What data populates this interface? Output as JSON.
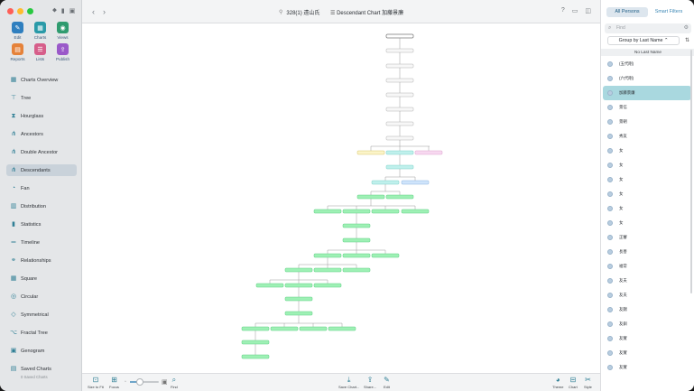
{
  "toolbar": {
    "title_number": "328(1) 遠山氏",
    "separator": "|",
    "chart_title": "Descendant Chart 加藤景廉"
  },
  "sidebar": {
    "tools": [
      {
        "label": "Edit",
        "icon": "pencil-icon",
        "color": "#2f7fbf"
      },
      {
        "label": "Charts",
        "icon": "charts-icon",
        "color": "#2a9aa8"
      },
      {
        "label": "Views",
        "icon": "eye-icon",
        "color": "#2f9b6f"
      },
      {
        "label": "Reports",
        "icon": "report-icon",
        "color": "#e5823a"
      },
      {
        "label": "Lists",
        "icon": "list-icon",
        "color": "#d65e8a"
      },
      {
        "label": "Publish",
        "icon": "upload-icon",
        "color": "#9a59c9"
      }
    ],
    "nav": [
      {
        "label": "Charts Overview"
      },
      {
        "label": "Tree"
      },
      {
        "label": "Hourglass"
      },
      {
        "label": "Ancestors"
      },
      {
        "label": "Double Ancestor"
      },
      {
        "label": "Descendants",
        "active": true
      },
      {
        "label": "Fan"
      },
      {
        "label": "Distribution"
      },
      {
        "label": "Statistics"
      },
      {
        "label": "Timeline"
      },
      {
        "label": "Relationships"
      },
      {
        "label": "Square"
      },
      {
        "label": "Circular"
      },
      {
        "label": "Symmetrical"
      },
      {
        "label": "Fractal Tree"
      },
      {
        "label": "Genogram"
      },
      {
        "label": "Saved Charts",
        "sub": "0 Saved Charts"
      }
    ]
  },
  "bottom": {
    "size_to_fit": "Size to Fit",
    "focus": "Focus",
    "find": "Find",
    "save_chart": "Save Chart...",
    "share": "Share...",
    "edit": "Edit",
    "theme": "Theme",
    "chart": "Chart",
    "style": "Style",
    "zoom_level": 0.35
  },
  "panel": {
    "tab_all": "All Persons",
    "tab_smart": "Smart Filters",
    "search_placeholder": "Find",
    "group_by": "Group by Last Name",
    "list_header": "No Last Name",
    "persons": [
      "(五代剛)",
      "(六代剛)",
      "加藤景廉",
      "景信",
      "景朝",
      "秀友",
      "女",
      "女",
      "女",
      "女",
      "女",
      "女",
      "正審",
      "長善",
      "福常",
      "友夫",
      "友夫",
      "友錦",
      "友釧",
      "友實",
      "友實",
      "友實"
    ],
    "selected_index": 2
  }
}
